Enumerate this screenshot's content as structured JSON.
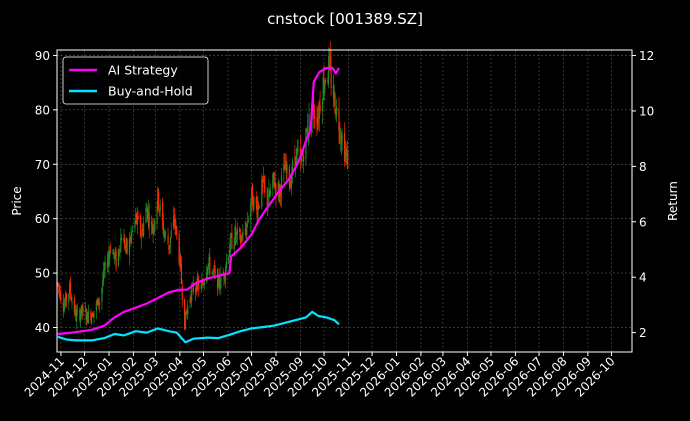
{
  "chart_data": {
    "type": "line",
    "title": "cnstock [001389.SZ]",
    "y_left_label": "Price",
    "y_right_label": "Return",
    "y_left_ticks": [
      40,
      50,
      60,
      70,
      80,
      90
    ],
    "y_right_ticks": [
      2,
      4,
      6,
      8,
      10,
      12
    ],
    "y_left_lim": [
      35.5,
      91
    ],
    "y_right_lim": [
      1.3,
      12.2
    ],
    "x_lim": [
      "2024-10-27",
      "2026-10-27"
    ],
    "x_ticks": [
      "2024-11",
      "2024-12",
      "2025-01",
      "2025-02",
      "2025-03",
      "2025-04",
      "2025-05",
      "2025-06",
      "2025-07",
      "2025-08",
      "2025-09",
      "2025-10",
      "2025-11",
      "2025-12",
      "2026-01",
      "2026-02",
      "2026-03",
      "2026-04",
      "2026-05",
      "2026-06",
      "2026-07",
      "2026-08",
      "2026-09",
      "2026-10"
    ],
    "grid": true,
    "legend_position": "top-left",
    "colors": {
      "background": "#000000",
      "up_candle": "#228b22",
      "down_candle": "#ff2a00",
      "ai_strategy": "#ff00ff",
      "buy_and_hold": "#00e5ff",
      "grid": "#555555",
      "axis": "#ffffff"
    },
    "price_path": [
      [
        "2024-10-28",
        48
      ],
      [
        "2024-11-05",
        44
      ],
      [
        "2024-11-12",
        47
      ],
      [
        "2024-11-20",
        42
      ],
      [
        "2024-11-28",
        43
      ],
      [
        "2024-12-05",
        42
      ],
      [
        "2024-12-12",
        43
      ],
      [
        "2024-12-20",
        45
      ],
      [
        "2024-12-26",
        50
      ],
      [
        "2025-01-03",
        55
      ],
      [
        "2025-01-10",
        52
      ],
      [
        "2025-01-17",
        57
      ],
      [
        "2025-01-24",
        54
      ],
      [
        "2025-02-04",
        60
      ],
      [
        "2025-02-11",
        57
      ],
      [
        "2025-02-18",
        62
      ],
      [
        "2025-02-25",
        58
      ],
      [
        "2025-03-04",
        64
      ],
      [
        "2025-03-11",
        58
      ],
      [
        "2025-03-18",
        55
      ],
      [
        "2025-03-25",
        60
      ],
      [
        "2025-04-01",
        52
      ],
      [
        "2025-04-07",
        41
      ],
      [
        "2025-04-14",
        46
      ],
      [
        "2025-04-21",
        48
      ],
      [
        "2025-04-28",
        47
      ],
      [
        "2025-05-06",
        52
      ],
      [
        "2025-05-13",
        50
      ],
      [
        "2025-05-20",
        48
      ],
      [
        "2025-05-27",
        50
      ],
      [
        "2025-06-03",
        55
      ],
      [
        "2025-06-10",
        57
      ],
      [
        "2025-06-17",
        56
      ],
      [
        "2025-06-24",
        58
      ],
      [
        "2025-07-01",
        64
      ],
      [
        "2025-07-08",
        62
      ],
      [
        "2025-07-15",
        66
      ],
      [
        "2025-07-22",
        63
      ],
      [
        "2025-07-29",
        67
      ],
      [
        "2025-08-05",
        65
      ],
      [
        "2025-08-12",
        69
      ],
      [
        "2025-08-19",
        67
      ],
      [
        "2025-08-26",
        72
      ],
      [
        "2025-09-02",
        70
      ],
      [
        "2025-09-09",
        76
      ],
      [
        "2025-09-16",
        80
      ],
      [
        "2025-09-23",
        79
      ],
      [
        "2025-09-30",
        85
      ],
      [
        "2025-10-07",
        88
      ],
      [
        "2025-10-14",
        82
      ],
      [
        "2025-10-21",
        77
      ],
      [
        "2025-10-28",
        72
      ],
      [
        "2025-11-01",
        70
      ]
    ],
    "series": [
      {
        "name": "AI Strategy",
        "axis": "right",
        "points": [
          [
            "2024-10-28",
            1.95
          ],
          [
            "2024-11-15",
            2.0
          ],
          [
            "2024-12-10",
            2.1
          ],
          [
            "2024-12-26",
            2.25
          ],
          [
            "2025-01-08",
            2.55
          ],
          [
            "2025-01-20",
            2.75
          ],
          [
            "2025-02-04",
            2.9
          ],
          [
            "2025-02-18",
            3.05
          ],
          [
            "2025-03-04",
            3.25
          ],
          [
            "2025-03-18",
            3.45
          ],
          [
            "2025-03-31",
            3.55
          ],
          [
            "2025-04-10",
            3.55
          ],
          [
            "2025-04-22",
            3.8
          ],
          [
            "2025-05-06",
            3.95
          ],
          [
            "2025-05-20",
            4.05
          ],
          [
            "2025-06-03",
            4.15
          ],
          [
            "2025-06-05",
            4.75
          ],
          [
            "2025-06-17",
            5.05
          ],
          [
            "2025-07-01",
            5.55
          ],
          [
            "2025-07-10",
            6.05
          ],
          [
            "2025-07-22",
            6.55
          ],
          [
            "2025-08-05",
            7.1
          ],
          [
            "2025-08-19",
            7.6
          ],
          [
            "2025-08-30",
            8.2
          ],
          [
            "2025-09-08",
            8.9
          ],
          [
            "2025-09-14",
            9.3
          ],
          [
            "2025-09-18",
            11.05
          ],
          [
            "2025-09-25",
            11.4
          ],
          [
            "2025-10-04",
            11.55
          ],
          [
            "2025-10-12",
            11.55
          ],
          [
            "2025-10-16",
            11.35
          ],
          [
            "2025-10-20",
            11.55
          ]
        ]
      },
      {
        "name": "Buy-and-Hold",
        "axis": "right",
        "points": [
          [
            "2024-10-28",
            1.85
          ],
          [
            "2024-11-08",
            1.75
          ],
          [
            "2024-11-20",
            1.72
          ],
          [
            "2024-12-10",
            1.72
          ],
          [
            "2024-12-26",
            1.8
          ],
          [
            "2025-01-08",
            1.95
          ],
          [
            "2025-01-20",
            1.9
          ],
          [
            "2025-02-04",
            2.05
          ],
          [
            "2025-02-18",
            2.0
          ],
          [
            "2025-03-04",
            2.15
          ],
          [
            "2025-03-18",
            2.05
          ],
          [
            "2025-03-28",
            2.0
          ],
          [
            "2025-04-08",
            1.65
          ],
          [
            "2025-04-18",
            1.78
          ],
          [
            "2025-05-06",
            1.82
          ],
          [
            "2025-05-20",
            1.8
          ],
          [
            "2025-06-03",
            1.92
          ],
          [
            "2025-06-17",
            2.05
          ],
          [
            "2025-07-01",
            2.15
          ],
          [
            "2025-07-15",
            2.2
          ],
          [
            "2025-07-29",
            2.25
          ],
          [
            "2025-08-12",
            2.35
          ],
          [
            "2025-08-26",
            2.45
          ],
          [
            "2025-09-08",
            2.55
          ],
          [
            "2025-09-16",
            2.75
          ],
          [
            "2025-09-24",
            2.6
          ],
          [
            "2025-10-04",
            2.55
          ],
          [
            "2025-10-14",
            2.45
          ],
          [
            "2025-10-20",
            2.3
          ]
        ]
      }
    ]
  }
}
